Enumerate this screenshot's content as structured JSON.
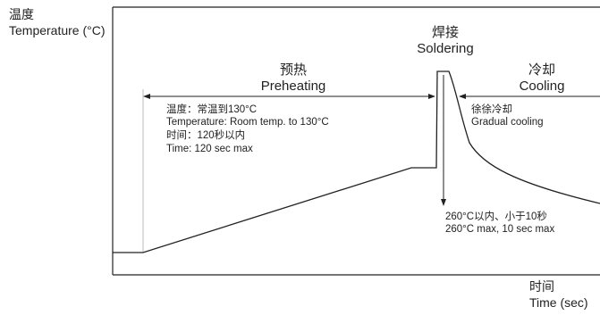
{
  "axes": {
    "y_label_zh": "温度",
    "y_label_en": "Temperature (°C)",
    "x_label_zh": "时间",
    "x_label_en": "Time (sec)"
  },
  "phases": {
    "preheating": {
      "title_zh": "预热",
      "title_en": "Preheating",
      "notes": [
        "温度：常温到130°C",
        "Temperature: Room temp. to 130°C",
        "时间：120秒以内",
        "Time: 120 sec max"
      ]
    },
    "soldering": {
      "title_zh": "焊接",
      "title_en": "Soldering",
      "notes": [
        "260°C以内、小于10秒",
        "260°C max, 10 sec max"
      ]
    },
    "cooling": {
      "title_zh": "冷却",
      "title_en": "Cooling",
      "notes": [
        "徐徐冷却",
        "Gradual cooling"
      ]
    }
  },
  "colors": {
    "line": "#222222",
    "divider": "#bbbbbb"
  }
}
